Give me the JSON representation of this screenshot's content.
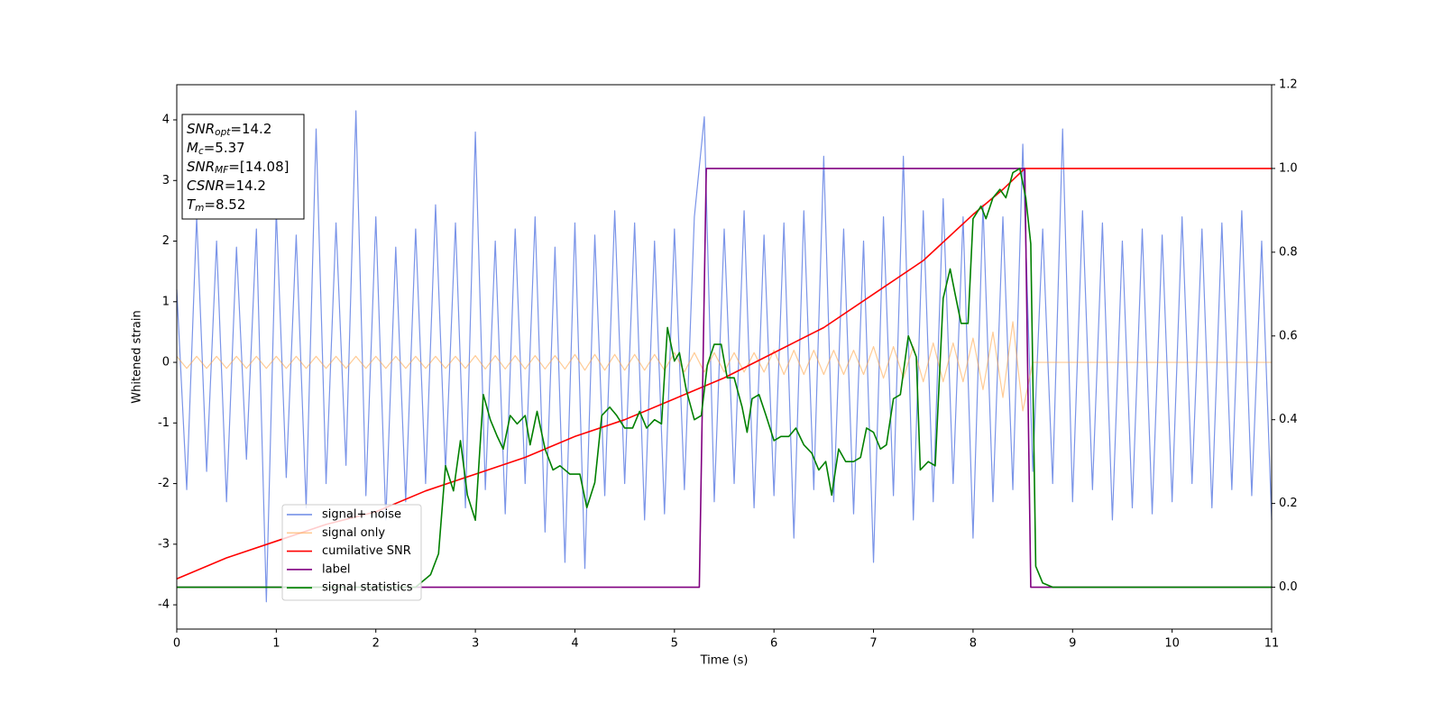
{
  "chart_data": {
    "type": "line",
    "xlabel": "Time (s)",
    "ylabel": "Whitened strain",
    "xlim": [
      0,
      11
    ],
    "ylim": [
      -4.4,
      4.58
    ],
    "y2lim": [
      -0.1,
      1.2
    ],
    "xticks": [
      0,
      1,
      2,
      3,
      4,
      5,
      6,
      7,
      8,
      9,
      10,
      11
    ],
    "yticks": [
      -4,
      -3,
      -2,
      -1,
      0,
      1,
      2,
      3,
      4
    ],
    "y2ticks": [
      {
        "value": 0,
        "label": "0.0"
      },
      0.2,
      0.4,
      0.6,
      0.8,
      {
        "value": 1,
        "label": "1.0"
      },
      1.2
    ],
    "legend": "lower left",
    "annotations": [
      {
        "name": "SNR",
        "sub": "opt",
        "text": "=14.2"
      },
      {
        "name": "M",
        "sub": "c",
        "text": "=5.37"
      },
      {
        "name": "SNR",
        "sub": "MF",
        "text": "=[14.08]"
      },
      {
        "name": "CSNR",
        "text": "=14.2"
      },
      {
        "name": "T",
        "sub": "m",
        "text": "=8.52"
      }
    ],
    "series": [
      {
        "name": "signal+ noise",
        "color": "#6b88e5",
        "axis": "y",
        "x": [
          0,
          0.1,
          0.2,
          0.3,
          0.4,
          0.5,
          0.6,
          0.7,
          0.8,
          0.9,
          1,
          1.1,
          1.2,
          1.3,
          1.4,
          1.5,
          1.6,
          1.7,
          1.8,
          1.9,
          2,
          2.1,
          2.2,
          2.3,
          2.4,
          2.5,
          2.6,
          2.7,
          2.8,
          2.9,
          3,
          3.1,
          3.2,
          3.3,
          3.4,
          3.5,
          3.6,
          3.7,
          3.8,
          3.9,
          4,
          4.1,
          4.2,
          4.3,
          4.4,
          4.5,
          4.6,
          4.7,
          4.8,
          4.9,
          5,
          5.1,
          5.2,
          5.3,
          5.4,
          5.5,
          5.6,
          5.7,
          5.8,
          5.9,
          6,
          6.1,
          6.2,
          6.3,
          6.4,
          6.5,
          6.6,
          6.7,
          6.8,
          6.9,
          7,
          7.1,
          7.2,
          7.3,
          7.4,
          7.5,
          7.6,
          7.7,
          7.8,
          7.9,
          8,
          8.1,
          8.2,
          8.3,
          8.4,
          8.5,
          8.6,
          8.7,
          8.8,
          8.9,
          9,
          9.1,
          9.2,
          9.3,
          9.4,
          9.5,
          9.6,
          9.7,
          9.8,
          9.9,
          10,
          10.1,
          10.2,
          10.3,
          10.4,
          10.5,
          10.6,
          10.7,
          10.8,
          10.9,
          11
        ],
        "values": [
          1.2,
          -2.1,
          2.4,
          -1.8,
          2.0,
          -2.3,
          1.9,
          -1.6,
          2.2,
          -3.95,
          2.5,
          -1.9,
          2.1,
          -2.4,
          3.85,
          -2.0,
          2.3,
          -1.7,
          4.15,
          -2.2,
          2.4,
          -2.6,
          1.9,
          -2.3,
          2.2,
          -2.0,
          2.6,
          -1.8,
          2.3,
          -2.4,
          3.8,
          -2.1,
          2.0,
          -2.5,
          2.2,
          -2.0,
          2.4,
          -2.8,
          1.9,
          -3.3,
          2.3,
          -3.4,
          2.1,
          -2.2,
          2.5,
          -2.0,
          2.3,
          -2.6,
          2.0,
          -2.5,
          2.2,
          -2.1,
          2.4,
          4.05,
          -2.3,
          2.2,
          -2.0,
          2.5,
          -2.4,
          2.1,
          -2.2,
          2.3,
          -2.9,
          2.5,
          -2.1,
          3.4,
          -2.3,
          2.2,
          -2.5,
          2.0,
          -3.3,
          2.4,
          -2.2,
          3.4,
          -2.6,
          2.5,
          -2.3,
          2.7,
          -2.0,
          2.4,
          -2.9,
          2.6,
          -2.3,
          2.4,
          -2.1,
          3.6,
          -1.8,
          2.2,
          -2.0,
          3.85,
          -2.3,
          2.5,
          -2.1,
          2.3,
          -2.6,
          2.0,
          -2.4,
          2.2,
          -2.5,
          2.1,
          -2.3,
          2.4,
          -2.0,
          2.2,
          -2.4,
          2.3,
          -2.1,
          2.5,
          -2.2,
          2.0,
          -2.6
        ]
      },
      {
        "name": "signal only",
        "color": "#ffa040",
        "axis": "y",
        "x": [
          0,
          0.1,
          0.2,
          0.3,
          0.4,
          0.5,
          0.6,
          0.7,
          0.8,
          0.9,
          1,
          1.1,
          1.2,
          1.3,
          1.4,
          1.5,
          1.6,
          1.7,
          1.8,
          1.9,
          2,
          2.1,
          2.2,
          2.3,
          2.4,
          2.5,
          2.6,
          2.7,
          2.8,
          2.9,
          3,
          3.1,
          3.2,
          3.3,
          3.4,
          3.5,
          3.6,
          3.7,
          3.8,
          3.9,
          4,
          4.1,
          4.2,
          4.3,
          4.4,
          4.5,
          4.6,
          4.7,
          4.8,
          4.9,
          5,
          5.1,
          5.2,
          5.3,
          5.4,
          5.5,
          5.6,
          5.7,
          5.8,
          5.9,
          6,
          6.1,
          6.2,
          6.3,
          6.4,
          6.5,
          6.6,
          6.7,
          6.8,
          6.9,
          7,
          7.1,
          7.2,
          7.3,
          7.4,
          7.5,
          7.6,
          7.7,
          7.8,
          7.9,
          8,
          8.1,
          8.2,
          8.3,
          8.4,
          8.5,
          8.6,
          8.7,
          8.8,
          8.9,
          9,
          9.1,
          9.2,
          9.3,
          9.4,
          9.5,
          9.6,
          9.7,
          9.8,
          9.9,
          10,
          10.1,
          10.2,
          10.3,
          10.4,
          10.5,
          10.6,
          10.7,
          10.8,
          10.9,
          11
        ],
        "values": [
          0.1,
          -0.1,
          0.1,
          -0.1,
          0.1,
          -0.1,
          0.1,
          -0.1,
          0.1,
          -0.1,
          0.1,
          -0.1,
          0.1,
          -0.1,
          0.1,
          -0.1,
          0.1,
          -0.1,
          0.1,
          -0.1,
          0.1,
          -0.1,
          0.1,
          -0.1,
          0.1,
          -0.1,
          0.1,
          -0.1,
          0.1,
          -0.1,
          0.11,
          -0.11,
          0.11,
          -0.11,
          0.11,
          -0.11,
          0.11,
          -0.11,
          0.11,
          -0.11,
          0.13,
          -0.13,
          0.13,
          -0.13,
          0.13,
          -0.13,
          0.13,
          -0.13,
          0.13,
          -0.13,
          0.16,
          -0.16,
          0.16,
          -0.16,
          0.16,
          -0.16,
          0.16,
          -0.16,
          0.16,
          -0.16,
          0.2,
          -0.2,
          0.2,
          -0.2,
          0.2,
          -0.2,
          0.2,
          -0.2,
          0.2,
          -0.2,
          0.26,
          -0.26,
          0.26,
          -0.26,
          0.26,
          -0.32,
          0.32,
          -0.32,
          0.32,
          -0.32,
          0.4,
          -0.45,
          0.5,
          -0.58,
          0.67,
          -0.8,
          0,
          0,
          0,
          0,
          0,
          0,
          0,
          0,
          0,
          0,
          0,
          0,
          0,
          0,
          0,
          0,
          0,
          0,
          0,
          0,
          0,
          0,
          0,
          0,
          0
        ]
      },
      {
        "name": "cumilative SNR",
        "color": "#ff0000",
        "axis": "y2",
        "x": [
          0,
          0.5,
          1,
          1.5,
          2,
          2.5,
          3,
          3.5,
          4,
          4.5,
          5,
          5.5,
          6,
          6.5,
          7,
          7.5,
          8,
          8.3,
          8.52,
          11
        ],
        "values": [
          0.02,
          0.07,
          0.11,
          0.15,
          0.18,
          0.23,
          0.27,
          0.31,
          0.36,
          0.4,
          0.45,
          0.5,
          0.56,
          0.62,
          0.7,
          0.78,
          0.89,
          0.95,
          1,
          1
        ]
      },
      {
        "name": "label",
        "color": "#800080",
        "axis": "y2",
        "x": [
          0,
          5.25,
          5.32,
          8.52,
          8.58,
          11
        ],
        "values": [
          0,
          0,
          1,
          1,
          0,
          0
        ]
      },
      {
        "name": "signal statistics",
        "color": "#008000",
        "axis": "y2",
        "x": [
          0,
          2.4,
          2.55,
          2.63,
          2.7,
          2.78,
          2.85,
          2.92,
          3.0,
          3.08,
          3.15,
          3.22,
          3.28,
          3.35,
          3.42,
          3.5,
          3.55,
          3.62,
          3.7,
          3.78,
          3.85,
          3.95,
          4.05,
          4.12,
          4.2,
          4.27,
          4.35,
          4.42,
          4.5,
          4.58,
          4.65,
          4.72,
          4.8,
          4.87,
          4.93,
          5.0,
          5.05,
          5.12,
          5.2,
          5.27,
          5.33,
          5.4,
          5.47,
          5.53,
          5.6,
          5.68,
          5.73,
          5.78,
          5.85,
          5.92,
          6.0,
          6.07,
          6.15,
          6.22,
          6.3,
          6.38,
          6.45,
          6.52,
          6.58,
          6.65,
          6.72,
          6.8,
          6.87,
          6.93,
          7.0,
          7.07,
          7.13,
          7.2,
          7.27,
          7.35,
          7.43,
          7.47,
          7.55,
          7.62,
          7.7,
          7.77,
          7.82,
          7.88,
          7.95,
          8.0,
          8.08,
          8.13,
          8.2,
          8.27,
          8.33,
          8.4,
          8.47,
          8.53,
          8.58,
          8.63,
          8.7,
          8.8,
          11
        ],
        "values": [
          0,
          0,
          0.03,
          0.08,
          0.29,
          0.23,
          0.35,
          0.22,
          0.16,
          0.46,
          0.4,
          0.36,
          0.33,
          0.41,
          0.39,
          0.41,
          0.34,
          0.42,
          0.33,
          0.28,
          0.29,
          0.27,
          0.27,
          0.19,
          0.25,
          0.41,
          0.43,
          0.41,
          0.38,
          0.38,
          0.42,
          0.38,
          0.4,
          0.39,
          0.62,
          0.54,
          0.56,
          0.47,
          0.4,
          0.41,
          0.53,
          0.58,
          0.58,
          0.5,
          0.5,
          0.43,
          0.37,
          0.45,
          0.46,
          0.41,
          0.35,
          0.36,
          0.36,
          0.38,
          0.34,
          0.32,
          0.28,
          0.3,
          0.22,
          0.33,
          0.3,
          0.3,
          0.31,
          0.38,
          0.37,
          0.33,
          0.34,
          0.45,
          0.46,
          0.6,
          0.55,
          0.28,
          0.3,
          0.29,
          0.69,
          0.76,
          0.7,
          0.63,
          0.63,
          0.88,
          0.91,
          0.88,
          0.93,
          0.95,
          0.93,
          0.99,
          1.0,
          0.93,
          0.82,
          0.05,
          0.01,
          0,
          0
        ]
      }
    ]
  }
}
